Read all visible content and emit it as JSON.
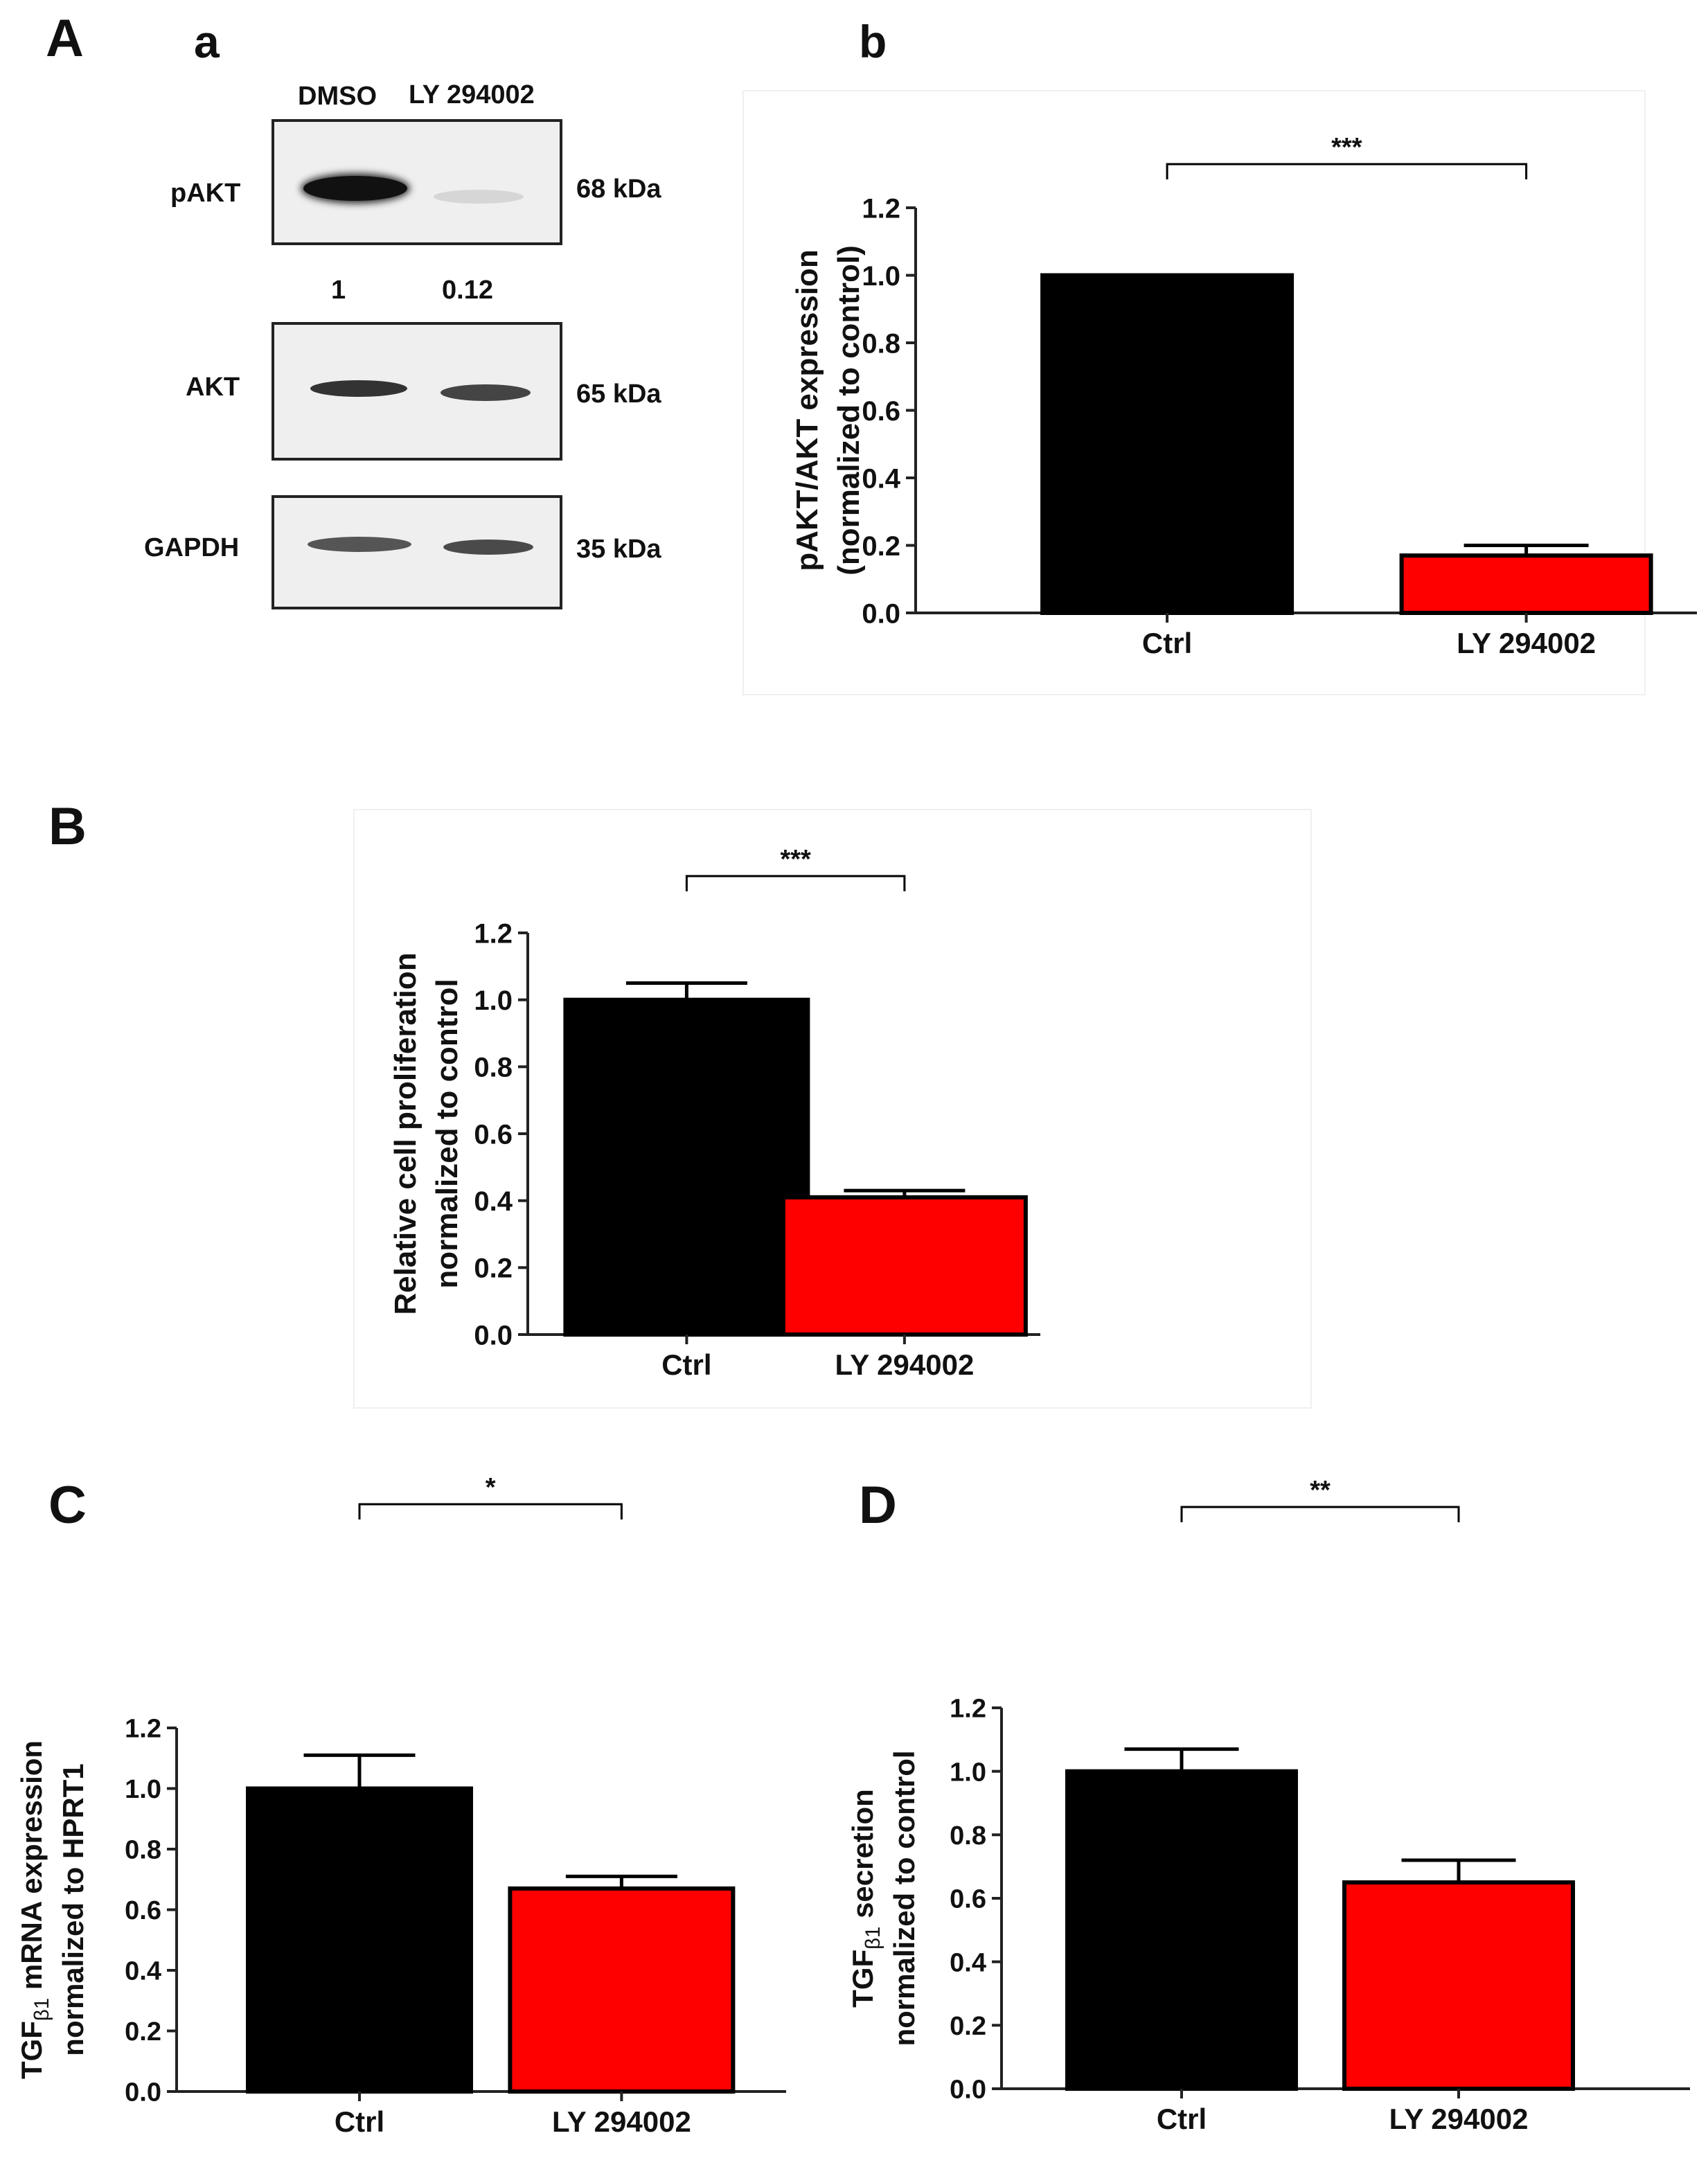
{
  "panels": {
    "A": "A",
    "a": "a",
    "b": "b",
    "B": "B",
    "C": "C",
    "D": "D"
  },
  "western": {
    "lanes": [
      "DMSO",
      "LY 294002"
    ],
    "blots": [
      {
        "label": "pAKT",
        "kda": "68 kDa",
        "intensity": [
          1.0,
          0.12
        ]
      },
      {
        "label": "AKT",
        "kda": "65 kDa",
        "intensity": [
          0.8,
          0.75
        ]
      },
      {
        "label": "GAPDH",
        "kda": "35 kDa",
        "intensity": [
          0.7,
          0.75
        ]
      }
    ],
    "quant": [
      "1",
      "0.12"
    ]
  },
  "colors": {
    "ctrl": "#000000",
    "ly": "#ff0000"
  },
  "chart_data": [
    {
      "id": "Ab",
      "type": "bar",
      "categories": [
        "Ctrl",
        "LY 294002"
      ],
      "values": [
        1.0,
        0.17
      ],
      "errors": [
        0,
        0.03
      ],
      "ylabel_lines": [
        "pAKT/AKT expression",
        "(normalized to control)"
      ],
      "ylim": [
        0,
        1.2
      ],
      "yticks": [
        "0.0",
        "0.2",
        "0.4",
        "0.6",
        "0.8",
        "1.0",
        "1.2"
      ],
      "significance": "***"
    },
    {
      "id": "B",
      "type": "bar",
      "categories": [
        "Ctrl",
        "LY 294002"
      ],
      "values": [
        1.0,
        0.41
      ],
      "errors": [
        0.05,
        0.02
      ],
      "ylabel_lines": [
        "Relative cell proliferation",
        "normalized to control"
      ],
      "ylim": [
        0,
        1.2
      ],
      "yticks": [
        "0.0",
        "0.2",
        "0.4",
        "0.6",
        "0.8",
        "1.0",
        "1.2"
      ],
      "significance": "***"
    },
    {
      "id": "C",
      "type": "bar",
      "categories": [
        "Ctrl",
        "LY 294002"
      ],
      "values": [
        1.0,
        0.67
      ],
      "errors": [
        0.11,
        0.04
      ],
      "ylabel_lines": [
        "TGFβ1 mRNA expression",
        "normalized to HPRT1"
      ],
      "ylim": [
        0,
        1.2
      ],
      "yticks": [
        "0.0",
        "0.2",
        "0.4",
        "0.6",
        "0.8",
        "1.0",
        "1.2"
      ],
      "significance": "*"
    },
    {
      "id": "D",
      "type": "bar",
      "categories": [
        "Ctrl",
        "LY 294002"
      ],
      "values": [
        1.0,
        0.65
      ],
      "errors": [
        0.07,
        0.07
      ],
      "ylabel_lines": [
        "TGFβ1 secretion",
        "normalized to control"
      ],
      "ylim": [
        0,
        1.2
      ],
      "yticks": [
        "0.0",
        "0.2",
        "0.4",
        "0.6",
        "0.8",
        "1.0",
        "1.2"
      ],
      "significance": "**"
    }
  ]
}
